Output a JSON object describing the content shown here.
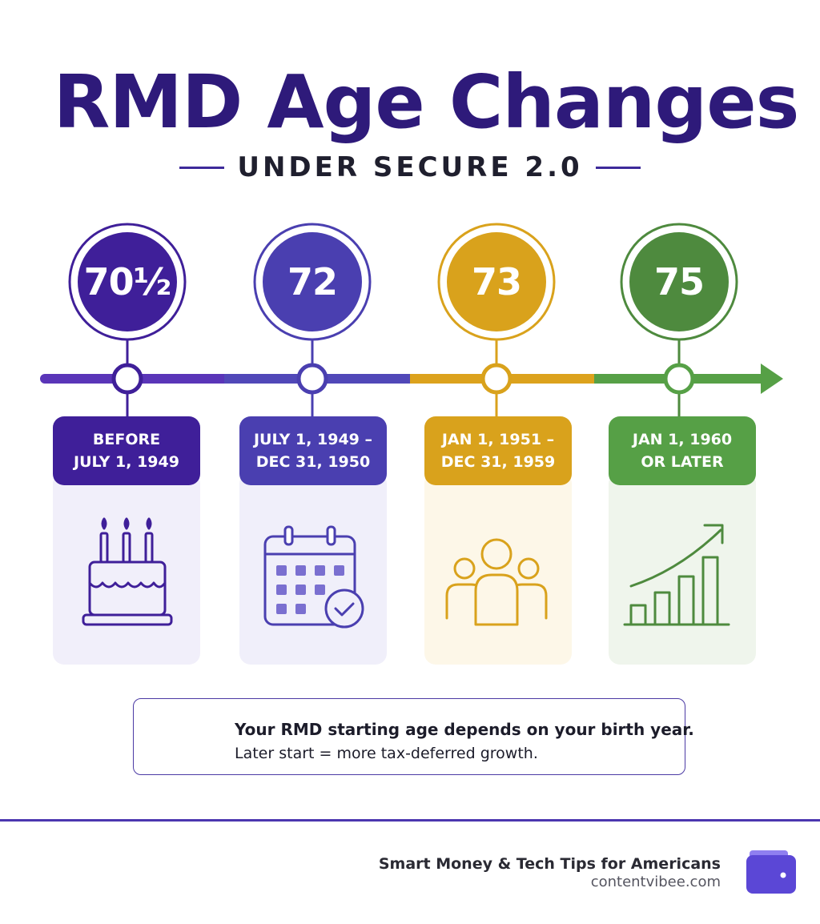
{
  "header": {
    "title": "RMD Age Changes",
    "subtitle": "UNDER SECURE 2.0"
  },
  "timeline": [
    {
      "age": "70½",
      "dates": "BEFORE\nJULY 1, 1949",
      "color": "#3f1f99",
      "light": "#f1effa",
      "icon": "birthday-cake-icon"
    },
    {
      "age": "72",
      "dates": "JULY 1, 1949 –\nDEC 31, 1950",
      "color": "#4a3fb0",
      "light": "#f0effa",
      "icon": "calendar-check-icon"
    },
    {
      "age": "73",
      "dates": "JAN 1, 1951 –\nDEC 31, 1959",
      "color": "#d9a21c",
      "light": "#fdf7e8",
      "icon": "group-of-people-icon"
    },
    {
      "age": "75",
      "dates": "JAN 1, 1960\nOR LATER",
      "color": "#4e8a3e",
      "light": "#eff5ec",
      "icon": "growth-chart-icon"
    }
  ],
  "note": {
    "icon": "shield-check-icon",
    "line1": "Your RMD starting age depends on your birth year.",
    "line2": "Later start = more tax-deferred growth."
  },
  "footer": {
    "tagline": "Smart Money & Tech Tips for Americans",
    "site": "contentvibee.com",
    "logo_icon": "wallet-icon",
    "accent": "#5b47d6"
  }
}
